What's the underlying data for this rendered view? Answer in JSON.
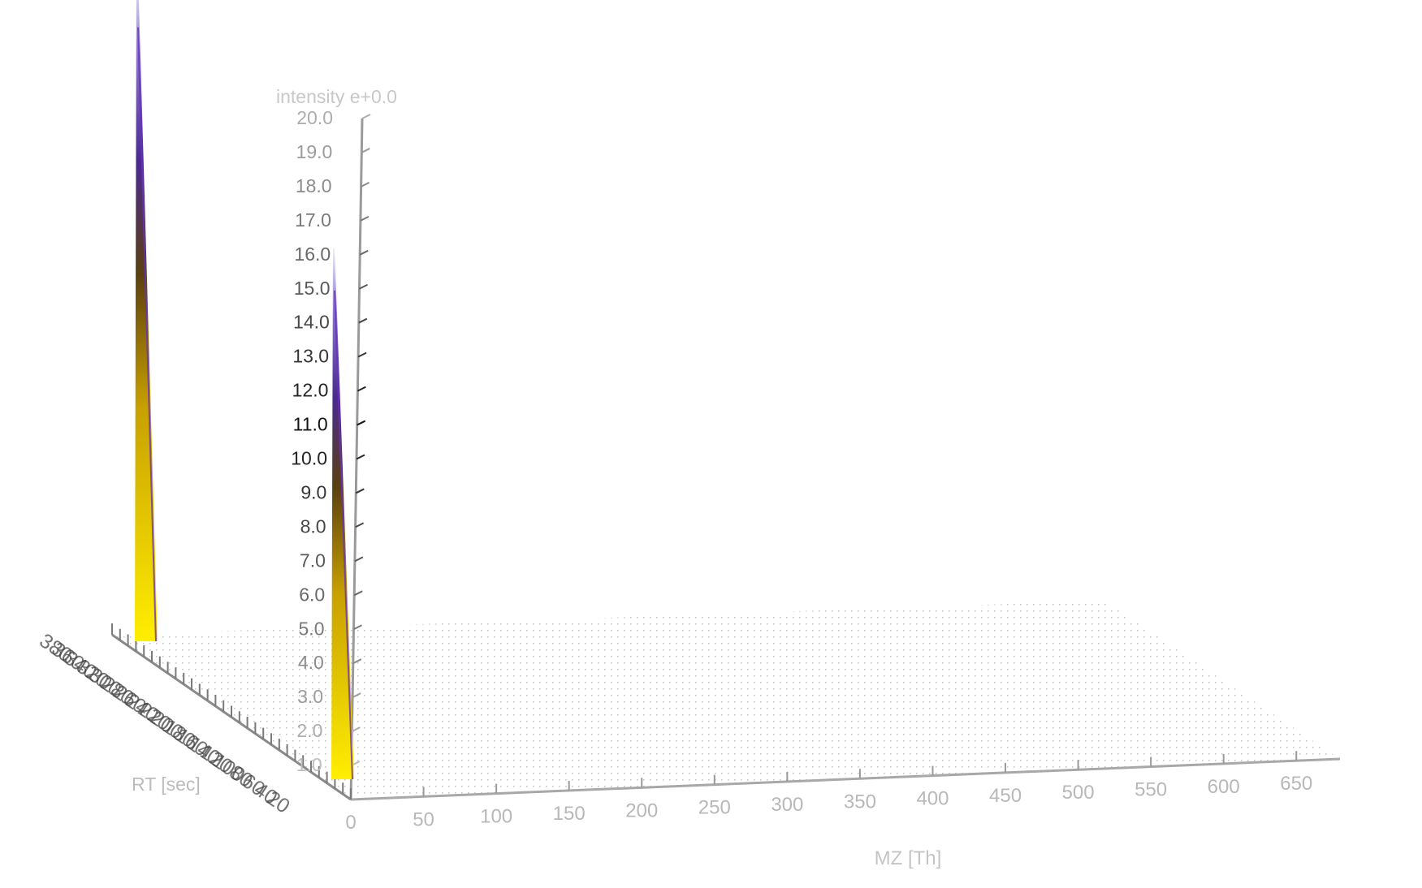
{
  "chart_data": {
    "type": "3d-surface",
    "title": "",
    "intensity_axis": {
      "label": "intensity e+0.0",
      "range": [
        0,
        20
      ],
      "ticks": [
        "1.0",
        "2.0",
        "3.0",
        "4.0",
        "5.0",
        "6.0",
        "7.0",
        "8.0",
        "9.0",
        "10.0",
        "11.0",
        "12.0",
        "13.0",
        "14.0",
        "15.0",
        "16.0",
        "17.0",
        "18.0",
        "19.0",
        "20.0"
      ]
    },
    "mz_axis": {
      "label": "MZ [Th]",
      "range": [
        0,
        680
      ],
      "ticks": [
        "0",
        "50",
        "100",
        "150",
        "200",
        "250",
        "300",
        "350",
        "400",
        "450",
        "500",
        "550",
        "600",
        "650"
      ]
    },
    "rt_axis": {
      "label": "RT [sec]",
      "tick_count": 30,
      "ticks": [
        "380",
        "360",
        "340",
        "320",
        "300",
        "280",
        "260",
        "240",
        "220",
        "200",
        "180",
        "160",
        "140",
        "120",
        "100",
        "80",
        "60",
        "40",
        "20"
      ]
    },
    "peaks": [
      {
        "mz": 0,
        "rt_position": "front",
        "intensity": 15.6
      },
      {
        "mz": 0,
        "rt_position": "back",
        "intensity": 19.6
      }
    ],
    "colormap": [
      "#ffee00",
      "#5a4010",
      "#5a2aa0",
      "#e8e8f0"
    ]
  }
}
